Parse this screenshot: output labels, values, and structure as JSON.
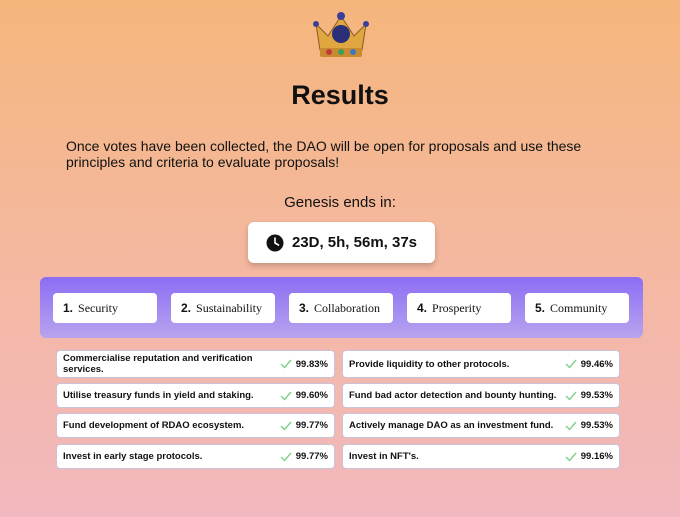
{
  "title": "Results",
  "description": "Once votes have been collected, the DAO will be open for proposals and use these principles and criteria to evaluate proposals!",
  "countdown": {
    "label": "Genesis ends in:",
    "value": "23D, 5h, 56m, 37s"
  },
  "principles": [
    {
      "number": "1.",
      "name": "Security"
    },
    {
      "number": "2.",
      "name": "Sustainability"
    },
    {
      "number": "3.",
      "name": "Collaboration"
    },
    {
      "number": "4.",
      "name": "Prosperity"
    },
    {
      "number": "5.",
      "name": "Community"
    }
  ],
  "results": [
    {
      "text": "Commercialise reputation and verification services.",
      "percent": "99.83%"
    },
    {
      "text": "Provide liquidity to other protocols.",
      "percent": "99.46%"
    },
    {
      "text": "Utilise treasury funds in yield and staking.",
      "percent": "99.60%"
    },
    {
      "text": "Fund bad actor detection and bounty hunting.",
      "percent": "99.53%"
    },
    {
      "text": "Fund development of RDAO ecosystem.",
      "percent": "99.77%"
    },
    {
      "text": "Actively manage DAO as an investment fund.",
      "percent": "99.53%"
    },
    {
      "text": "Invest in early stage protocols.",
      "percent": "99.77%"
    },
    {
      "text": "Invest in NFT's.",
      "percent": "99.16%"
    }
  ]
}
